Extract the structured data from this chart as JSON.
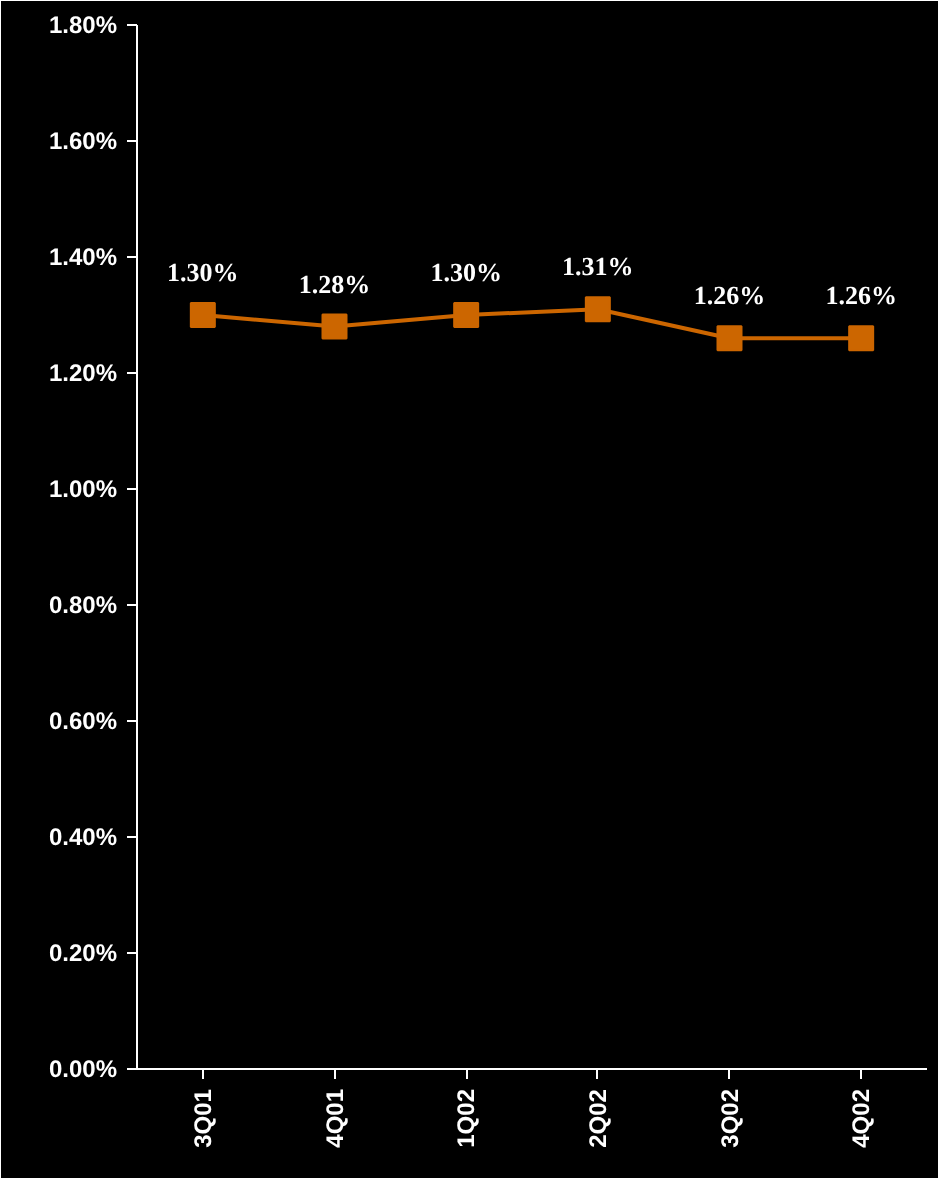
{
  "chart_data": {
    "type": "line",
    "categories": [
      "3Q01",
      "4Q01",
      "1Q02",
      "2Q02",
      "3Q02",
      "4Q02"
    ],
    "series": [
      {
        "color": "#cc6600",
        "values": [
          1.3,
          1.28,
          1.3,
          1.31,
          1.26,
          1.26
        ]
      }
    ],
    "value_labels": [
      "1.30%",
      "1.28%",
      "1.30%",
      "1.31%",
      "1.26%",
      "1.26%"
    ],
    "ylim": [
      0,
      1.8
    ],
    "yticks": [
      {
        "value": 0,
        "label": "0.00%"
      },
      {
        "value": 0.2,
        "label": "0.20%"
      },
      {
        "value": 0.4,
        "label": "0.40%"
      },
      {
        "value": 0.6,
        "label": "0.60%"
      },
      {
        "value": 0.8,
        "label": "0.80%"
      },
      {
        "value": 1.0,
        "label": "1.00%"
      },
      {
        "value": 1.2,
        "label": "1.20%"
      },
      {
        "value": 1.4,
        "label": "1.40%"
      },
      {
        "value": 1.6,
        "label": "1.60%"
      },
      {
        "value": 1.8,
        "label": "1.80%"
      }
    ],
    "grid": false,
    "marker": "square",
    "line_style": "solid"
  }
}
